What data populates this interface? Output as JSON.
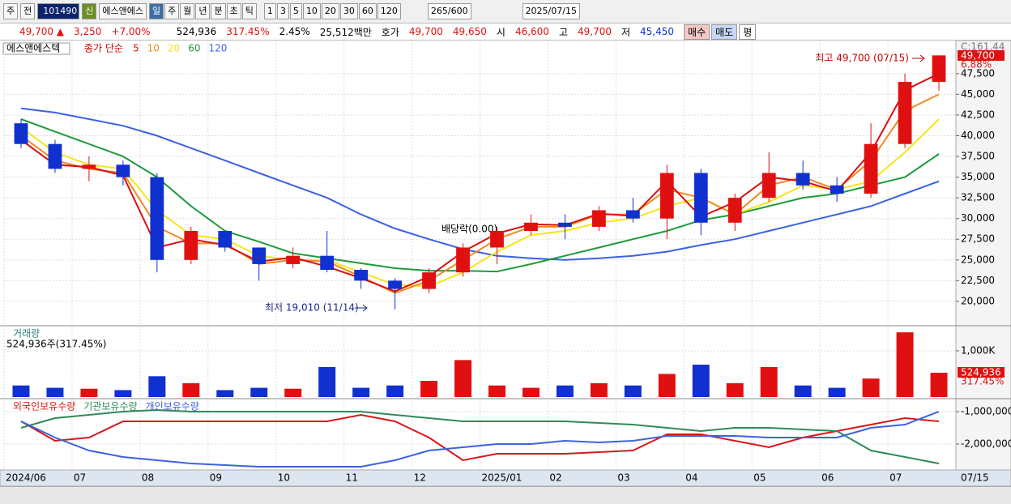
{
  "toolbar": {
    "market": "주",
    "scope": "전",
    "code": "101490",
    "badge": "신",
    "name": "에스앤에스",
    "periods": [
      "일",
      "주",
      "월",
      "년",
      "분",
      "초",
      "틱"
    ],
    "intervals": [
      "1",
      "3",
      "5",
      "10",
      "20",
      "30",
      "60",
      "120"
    ],
    "count": "265",
    "count_max": "/600",
    "date": "2025/07/15"
  },
  "quote": {
    "price": "49,700 ▲",
    "change": "3,250",
    "rate": "+7.00%",
    "volume": "524,936",
    "volume_ratio": "317.45%",
    "turnover": "2.45%",
    "amount": "25,512백만",
    "bid_label": "호가",
    "ask": "49,700",
    "bid": "49,650",
    "open_label": "시",
    "open": "46,600",
    "high_label": "고",
    "high": "49,700",
    "low_label": "저",
    "low": "45,450",
    "buy": "매수",
    "sell": "매도",
    "avg": "평"
  },
  "chart_data": [
    {
      "type": "candlestick",
      "title": "에스앤에스텍",
      "subtitle": "종가 단순",
      "categories": [
        "2024/06",
        null,
        "07",
        null,
        "08",
        null,
        "09",
        null,
        "10",
        null,
        "11",
        null,
        "12",
        null,
        "2025/01",
        null,
        "02",
        null,
        "03",
        null,
        "04",
        null,
        "05",
        null,
        "06",
        null,
        "07",
        null
      ],
      "cursor_date": "07/15",
      "open": [
        41500,
        39000,
        36000,
        36500,
        35000,
        25000,
        28500,
        26500,
        24500,
        25500,
        23800,
        22500,
        21500,
        23500,
        26500,
        28500,
        29500,
        29000,
        31000,
        30000,
        35500,
        29500,
        32500,
        35500,
        34000,
        33000,
        39000,
        46500
      ],
      "high": [
        42000,
        39500,
        37500,
        37000,
        35500,
        29000,
        28500,
        26500,
        26500,
        28500,
        24000,
        22800,
        24000,
        27000,
        29000,
        30500,
        30500,
        31500,
        32500,
        36500,
        36000,
        33000,
        38000,
        37000,
        35000,
        41500,
        47500,
        49700
      ],
      "low": [
        38500,
        35500,
        34500,
        34000,
        23500,
        24500,
        26000,
        22500,
        24000,
        23500,
        21500,
        19010,
        21000,
        23000,
        24500,
        28000,
        27500,
        28500,
        29500,
        27500,
        28000,
        28500,
        32000,
        33500,
        32000,
        32500,
        38500,
        45450
      ],
      "close": [
        39000,
        36000,
        36500,
        35000,
        25000,
        28500,
        26500,
        24500,
        25500,
        23800,
        22500,
        21500,
        23500,
        26500,
        28500,
        29500,
        29000,
        31000,
        30000,
        35500,
        29500,
        32500,
        35500,
        34000,
        33000,
        39000,
        46500,
        49700
      ],
      "up_color": "#e01010",
      "down_color": "#1030d0",
      "series": [
        {
          "name": "5",
          "color": "#d81010",
          "values": [
            39500,
            36500,
            36200,
            35200,
            26500,
            27500,
            26800,
            24800,
            25300,
            24200,
            22800,
            21200,
            23000,
            26000,
            28200,
            29300,
            29200,
            30600,
            30300,
            34500,
            30200,
            32000,
            35000,
            34500,
            33300,
            38000,
            45500,
            47500
          ]
        },
        {
          "name": "10",
          "color": "#f08a20",
          "values": [
            40000,
            37000,
            36000,
            35500,
            29000,
            27000,
            27000,
            24500,
            25000,
            24800,
            23000,
            21000,
            22500,
            25000,
            27500,
            29000,
            29000,
            30500,
            30500,
            33500,
            32500,
            30500,
            34000,
            35000,
            33500,
            37000,
            43000,
            45000
          ]
        },
        {
          "name": "20",
          "color": "#f5e51a",
          "values": [
            41000,
            38000,
            36500,
            36000,
            31000,
            28000,
            27500,
            25500,
            25000,
            25000,
            23500,
            22000,
            21800,
            23500,
            26000,
            28000,
            28500,
            29500,
            30000,
            31500,
            32500,
            30500,
            32000,
            34000,
            33500,
            34500,
            38000,
            42000
          ]
        },
        {
          "name": "60",
          "color": "#1f9a3d",
          "values": [
            42000,
            40500,
            39000,
            37500,
            35000,
            31500,
            28500,
            27200,
            25800,
            25200,
            24600,
            24000,
            23700,
            23700,
            23600,
            24500,
            25500,
            26500,
            27500,
            28500,
            29800,
            30500,
            31500,
            32500,
            33000,
            34000,
            35000,
            37800
          ]
        },
        {
          "name": "120",
          "color": "#3c62e0",
          "values": [
            43300,
            42800,
            42000,
            41200,
            40000,
            38500,
            37000,
            35500,
            34000,
            32500,
            30500,
            28800,
            27500,
            26300,
            25500,
            25200,
            25000,
            25200,
            25500,
            26000,
            26800,
            27500,
            28500,
            29500,
            30500,
            31500,
            33000,
            34500
          ]
        }
      ],
      "ylim": [
        17250,
        51300
      ],
      "yticks": [
        {
          "value": 20000,
          "label": "20,000"
        },
        {
          "value": 22500,
          "label": "22,500"
        },
        {
          "value": 25000,
          "label": "25,000"
        },
        {
          "value": 27500,
          "label": "27,500"
        },
        {
          "value": 30000,
          "label": "30,000"
        },
        {
          "value": 32500,
          "label": "32,500"
        },
        {
          "value": 35000,
          "label": "35,000"
        },
        {
          "value": 37500,
          "label": "37,500"
        },
        {
          "value": 40000,
          "label": "40,000"
        },
        {
          "value": 42500,
          "label": "42,500"
        },
        {
          "value": 45000,
          "label": "45,000"
        },
        {
          "value": 47500,
          "label": "47,500"
        }
      ],
      "annotations": {
        "high": "최고 49,700 (07/15)",
        "low": "최저 19,010 (11/14)",
        "event": "배당락(0.00)"
      },
      "corner_label": "C:161.44",
      "last_label": "49,700",
      "change_label": "6.88%",
      "grid": true
    },
    {
      "type": "bar",
      "title": "거래량",
      "subtitle": "524,936주(317.45%)",
      "values": [
        250000,
        200000,
        180000,
        150000,
        450000,
        300000,
        150000,
        200000,
        180000,
        650000,
        200000,
        250000,
        350000,
        800000,
        250000,
        200000,
        250000,
        300000,
        250000,
        500000,
        700000,
        300000,
        650000,
        250000,
        200000,
        400000,
        1400000,
        524936
      ],
      "ylim": [
        0,
        1490000
      ],
      "yticks": [
        {
          "value": 1000000,
          "label": "1,000K"
        }
      ],
      "last_label": "524,936",
      "ratio_label": "317.45%",
      "grid": true
    },
    {
      "type": "line",
      "series": [
        {
          "name": "외국인보유수량",
          "color": "#d81818",
          "values": [
            -1300000,
            -1900000,
            -1800000,
            -1300000,
            -1300000,
            -1300000,
            -1300000,
            -1300000,
            -1300000,
            -1300000,
            -1100000,
            -1300000,
            -1800000,
            -2500000,
            -2300000,
            -2300000,
            -2300000,
            -2250000,
            -2200000,
            -1700000,
            -1700000,
            -1900000,
            -2100000,
            -1800000,
            -1600000,
            -1400000,
            -1200000,
            -1300000
          ]
        },
        {
          "name": "기관보유수량",
          "color": "#2e8b57",
          "values": [
            -1500000,
            -1200000,
            -1100000,
            -1000000,
            -950000,
            -1000000,
            -1000000,
            -1000000,
            -1000000,
            -1000000,
            -1000000,
            -1100000,
            -1200000,
            -1300000,
            -1300000,
            -1300000,
            -1300000,
            -1350000,
            -1400000,
            -1500000,
            -1600000,
            -1500000,
            -1500000,
            -1550000,
            -1600000,
            -2200000,
            -2400000,
            -2600000
          ]
        },
        {
          "name": "개인보유수량",
          "color": "#3c62e0",
          "values": [
            -1300000,
            -1800000,
            -2200000,
            -2400000,
            -2500000,
            -2600000,
            -2650000,
            -2700000,
            -2700000,
            -2700000,
            -2700000,
            -2500000,
            -2200000,
            -2100000,
            -2000000,
            -2000000,
            -1900000,
            -1950000,
            -1900000,
            -1750000,
            -1750000,
            -1750000,
            -1800000,
            -1800000,
            -1800000,
            -1500000,
            -1400000,
            -1000000
          ]
        }
      ],
      "ylim": [
        -2800000,
        -675000
      ],
      "yticks": [
        {
          "value": -1000000,
          "label": "-1,000,000"
        },
        {
          "value": -2000000,
          "label": "-2,000,000"
        }
      ],
      "grid": true
    }
  ]
}
